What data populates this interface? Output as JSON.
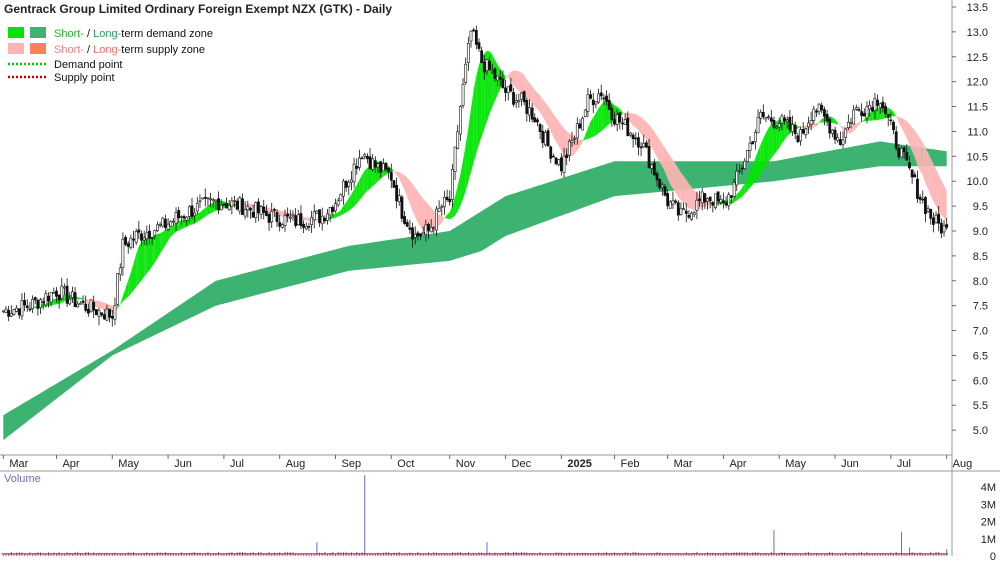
{
  "chart_data": {
    "type": "candlestick",
    "title": "Gentrack Group Limited Ordinary Foreign Exempt NZX (GTK) - Daily",
    "legend": [
      {
        "short": "Short-",
        "sep": " / ",
        "long": "Long-",
        "rest": "term demand zone",
        "short_color": "#00e600",
        "long_color": "#3cb371"
      },
      {
        "short": "Short-",
        "sep": " / ",
        "long": "Long-",
        "rest": "term supply zone",
        "short_color": "#ffb3b3",
        "long_color": "#ff7f5a"
      },
      {
        "label": "Demand point",
        "color": "#00cc00"
      },
      {
        "label": "Supply point",
        "color": "#cc0000"
      }
    ],
    "price_axis": {
      "ylim": [
        4.5,
        13.6
      ],
      "ticks": [
        "5.0",
        "5.5",
        "6.0",
        "6.5",
        "7.0",
        "7.5",
        "8.0",
        "8.5",
        "9.0",
        "9.5",
        "10.0",
        "10.5",
        "11.0",
        "11.5",
        "12.0",
        "12.5",
        "13.0",
        "13.5"
      ],
      "position": "right"
    },
    "x_axis": {
      "labels": [
        "Mar",
        "Apr",
        "May",
        "Jun",
        "Jul",
        "Aug",
        "Sep",
        "Oct",
        "Nov",
        "Dec",
        "2025",
        "Feb",
        "Mar",
        "Apr",
        "May",
        "Jun",
        "Jul",
        "Aug"
      ],
      "label_index": [
        0,
        20,
        41,
        62,
        83,
        104,
        125,
        146,
        168,
        189,
        210,
        230,
        250,
        271,
        292,
        313,
        334,
        355
      ]
    },
    "price_series": {
      "x": [
        0,
        10,
        20,
        30,
        41,
        45,
        50,
        60,
        70,
        80,
        90,
        100,
        110,
        120,
        125,
        130,
        135,
        140,
        146,
        150,
        155,
        160,
        165,
        168,
        172,
        176,
        180,
        185,
        189,
        195,
        200,
        205,
        210,
        215,
        220,
        225,
        230,
        240,
        245,
        250,
        255,
        260,
        265,
        271,
        275,
        280,
        285,
        292,
        300,
        305,
        310,
        315,
        320,
        325,
        330,
        335,
        340,
        345,
        350,
        355
      ],
      "close": [
        7.4,
        7.5,
        7.8,
        7.5,
        7.3,
        8.7,
        8.9,
        9.1,
        9.4,
        9.6,
        9.5,
        9.3,
        9.2,
        9.3,
        9.6,
        10.1,
        10.6,
        10.3,
        10.1,
        9.4,
        8.9,
        9.0,
        9.5,
        9.6,
        11.5,
        13.0,
        12.4,
        12.1,
        11.8,
        11.6,
        11.3,
        10.7,
        10.3,
        10.9,
        11.6,
        11.8,
        11.3,
        10.8,
        10.2,
        9.6,
        9.3,
        9.5,
        9.7,
        9.5,
        9.9,
        10.6,
        11.3,
        11.2,
        10.9,
        11.5,
        11.2,
        10.8,
        11.4,
        11.5,
        11.7,
        10.9,
        10.3,
        9.7,
        9.2,
        9.0
      ]
    },
    "long_term_demand_zone": {
      "x": [
        0,
        41,
        80,
        130,
        168,
        180,
        189,
        230,
        290,
        330,
        355
      ],
      "upper": [
        5.3,
        6.6,
        8.0,
        8.7,
        9.0,
        9.4,
        9.7,
        10.4,
        10.4,
        10.8,
        10.6
      ],
      "lower": [
        4.8,
        6.5,
        7.5,
        8.2,
        8.4,
        8.6,
        8.9,
        9.7,
        10.0,
        10.3,
        10.3
      ]
    },
    "volume_series": {
      "label": "Volume",
      "ticks": [
        "0",
        "1M",
        "2M",
        "3M",
        "4M"
      ],
      "peaks": [
        {
          "x": 136,
          "value": 4.7
        },
        {
          "x": 118,
          "value": 0.8
        },
        {
          "x": 182,
          "value": 0.8
        },
        {
          "x": 290,
          "value": 1.5
        },
        {
          "x": 338,
          "value": 1.4
        },
        {
          "x": 341,
          "value": 0.5
        },
        {
          "x": 355,
          "value": 0.4
        }
      ],
      "base": 0.1
    }
  }
}
